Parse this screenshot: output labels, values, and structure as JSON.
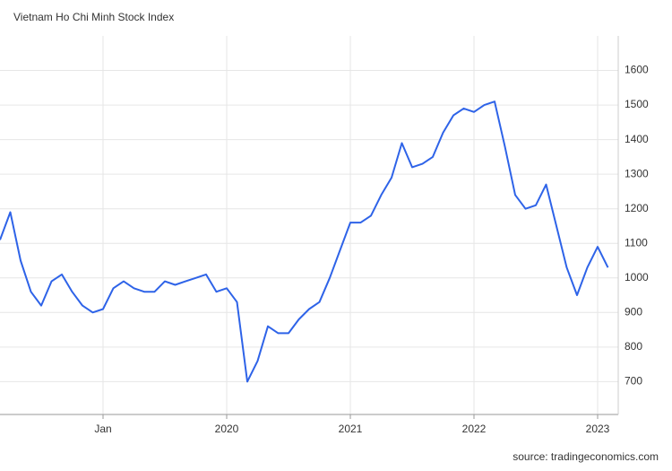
{
  "chart_data": {
    "type": "line",
    "title": "Vietnam Ho Chi Minh Stock Index",
    "source": "source: tradingeconomics.com",
    "x": [
      "2018-03",
      "2018-04",
      "2018-05",
      "2018-06",
      "2018-07",
      "2018-08",
      "2018-09",
      "2018-10",
      "2018-11",
      "2018-12",
      "2019-01",
      "2019-02",
      "2019-03",
      "2019-04",
      "2019-05",
      "2019-06",
      "2019-07",
      "2019-08",
      "2019-09",
      "2019-10",
      "2019-11",
      "2019-12",
      "2020-01",
      "2020-02",
      "2020-03",
      "2020-04",
      "2020-05",
      "2020-06",
      "2020-07",
      "2020-08",
      "2020-09",
      "2020-10",
      "2020-11",
      "2020-12",
      "2021-01",
      "2021-02",
      "2021-03",
      "2021-04",
      "2021-05",
      "2021-06",
      "2021-07",
      "2021-08",
      "2021-09",
      "2021-10",
      "2021-11",
      "2021-12",
      "2022-01",
      "2022-02",
      "2022-03",
      "2022-04",
      "2022-05",
      "2022-06",
      "2022-07",
      "2022-08",
      "2022-09",
      "2022-10",
      "2022-11",
      "2022-12",
      "2023-01",
      "2023-02"
    ],
    "series": [
      {
        "name": "Index",
        "color": "#2e63e8",
        "values": [
          1110,
          1190,
          1050,
          960,
          920,
          990,
          1010,
          960,
          920,
          900,
          910,
          970,
          990,
          970,
          960,
          960,
          990,
          980,
          990,
          1000,
          1010,
          960,
          970,
          930,
          700,
          760,
          860,
          840,
          840,
          880,
          910,
          930,
          1000,
          1080,
          1160,
          1160,
          1180,
          1240,
          1290,
          1390,
          1320,
          1330,
          1350,
          1420,
          1470,
          1490,
          1480,
          1500,
          1510,
          1380,
          1240,
          1200,
          1210,
          1270,
          1150,
          1030,
          950,
          1030,
          1090,
          1030
        ]
      }
    ],
    "xlim": [
      "2018-03",
      "2023-03"
    ],
    "xticks": [
      {
        "value": "2019-01",
        "label": "Jan"
      },
      {
        "value": "2020-01",
        "label": "2020"
      },
      {
        "value": "2021-01",
        "label": "2021"
      },
      {
        "value": "2022-01",
        "label": "2022"
      },
      {
        "value": "2023-01",
        "label": "2023"
      }
    ],
    "ylim": [
      605,
      1700
    ],
    "yticks": [
      700,
      800,
      900,
      1000,
      1100,
      1200,
      1300,
      1400,
      1500,
      1600
    ],
    "grid": true
  }
}
